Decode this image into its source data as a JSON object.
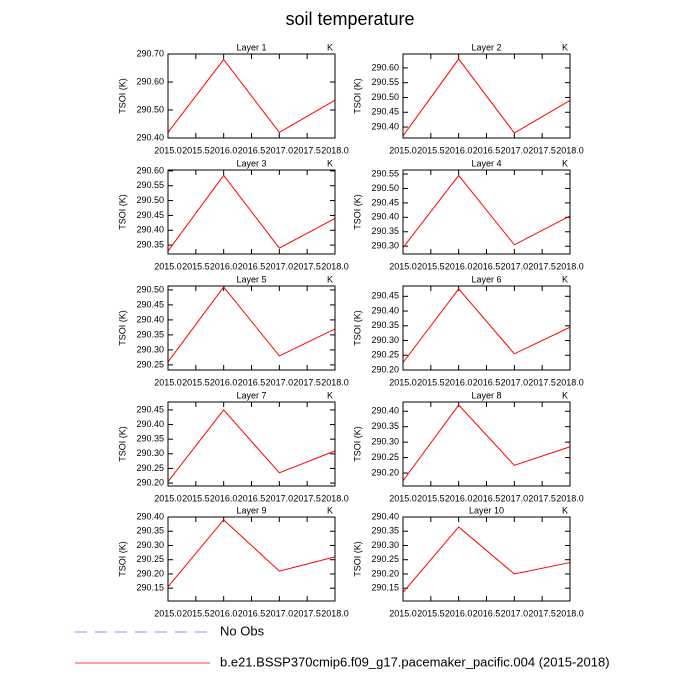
{
  "title": "soil temperature",
  "legend": [
    {
      "name": "No Obs",
      "color": "#8c8cf0",
      "dash": true
    },
    {
      "name": "b.e21.BSSP370cmip6.f09_g17.pacemaker_pacific.004 (2015-2018)",
      "color": "#ff4040",
      "dash": false
    }
  ],
  "chart_data": [
    {
      "type": "line",
      "title": "Layer 1",
      "unit": "K",
      "ylabel": "TSOI  (K)",
      "x": [
        2015,
        2016,
        2017,
        2018
      ],
      "values": [
        290.42,
        290.68,
        290.42,
        290.535
      ],
      "color": "#ff0000",
      "xlim": [
        2015,
        2018
      ],
      "ylim": [
        290.4,
        290.7
      ],
      "xticks": [
        {
          "value": 2015,
          "label": "2015.0"
        },
        {
          "value": 2015.5,
          "label": "2015.5"
        },
        {
          "value": 2016,
          "label": "2016.0"
        },
        {
          "value": 2016.5,
          "label": "2016.5"
        },
        {
          "value": 2017,
          "label": "2017.0"
        },
        {
          "value": 2017.5,
          "label": "2017.5"
        },
        {
          "value": 2018,
          "label": "2018.0"
        }
      ],
      "yticks": [
        {
          "value": 290.4,
          "label": "290.40"
        },
        {
          "value": 290.5,
          "label": "290.50"
        },
        {
          "value": 290.6,
          "label": "290.60"
        },
        {
          "value": 290.7,
          "label": "290.70"
        }
      ]
    },
    {
      "type": "line",
      "title": "Layer 2",
      "unit": "K",
      "ylabel": "TSOI  (K)",
      "x": [
        2015,
        2016,
        2017,
        2018
      ],
      "values": [
        290.37,
        290.63,
        290.38,
        290.49
      ],
      "color": "#ff0000",
      "xlim": [
        2015,
        2018
      ],
      "ylim": [
        290.363,
        290.647
      ],
      "xticks": [
        {
          "value": 2015,
          "label": "2015.0"
        },
        {
          "value": 2015.5,
          "label": "2015.5"
        },
        {
          "value": 2016,
          "label": "2016.0"
        },
        {
          "value": 2016.5,
          "label": "2016.5"
        },
        {
          "value": 2017,
          "label": "2017.0"
        },
        {
          "value": 2017.5,
          "label": "2017.5"
        },
        {
          "value": 2018,
          "label": "2018.0"
        }
      ],
      "yticks": [
        {
          "value": 290.4,
          "label": "290.40"
        },
        {
          "value": 290.45,
          "label": "290.45"
        },
        {
          "value": 290.5,
          "label": "290.50"
        },
        {
          "value": 290.55,
          "label": "290.55"
        },
        {
          "value": 290.6,
          "label": "290.60"
        }
      ]
    },
    {
      "type": "line",
      "title": "Layer 3",
      "unit": "K",
      "ylabel": "TSOI  (K)",
      "x": [
        2015,
        2016,
        2017,
        2018
      ],
      "values": [
        290.33,
        290.585,
        290.34,
        290.44
      ],
      "color": "#ff0000",
      "xlim": [
        2015,
        2018
      ],
      "ylim": [
        290.32,
        290.603
      ],
      "xticks": [
        {
          "value": 2015,
          "label": "2015.0"
        },
        {
          "value": 2015.5,
          "label": "2015.5"
        },
        {
          "value": 2016,
          "label": "2016.0"
        },
        {
          "value": 2016.5,
          "label": "2016.5"
        },
        {
          "value": 2017,
          "label": "2017.0"
        },
        {
          "value": 2017.5,
          "label": "2017.5"
        },
        {
          "value": 2018,
          "label": "2018.0"
        }
      ],
      "yticks": [
        {
          "value": 290.35,
          "label": "290.35"
        },
        {
          "value": 290.4,
          "label": "290.40"
        },
        {
          "value": 290.45,
          "label": "290.45"
        },
        {
          "value": 290.5,
          "label": "290.50"
        },
        {
          "value": 290.55,
          "label": "290.55"
        },
        {
          "value": 290.6,
          "label": "290.60"
        }
      ]
    },
    {
      "type": "line",
      "title": "Layer 4",
      "unit": "K",
      "ylabel": "TSOI  (K)",
      "x": [
        2015,
        2016,
        2017,
        2018
      ],
      "values": [
        290.295,
        290.545,
        290.305,
        290.405
      ],
      "color": "#ff0000",
      "xlim": [
        2015,
        2018
      ],
      "ylim": [
        290.273,
        290.564
      ],
      "xticks": [
        {
          "value": 2015,
          "label": "2015.0"
        },
        {
          "value": 2015.5,
          "label": "2015.5"
        },
        {
          "value": 2016,
          "label": "2016.0"
        },
        {
          "value": 2016.5,
          "label": "2016.5"
        },
        {
          "value": 2017,
          "label": "2017.0"
        },
        {
          "value": 2017.5,
          "label": "2017.5"
        },
        {
          "value": 2018,
          "label": "2018.0"
        }
      ],
      "yticks": [
        {
          "value": 290.3,
          "label": "290.30"
        },
        {
          "value": 290.35,
          "label": "290.35"
        },
        {
          "value": 290.4,
          "label": "290.40"
        },
        {
          "value": 290.45,
          "label": "290.45"
        },
        {
          "value": 290.5,
          "label": "290.50"
        },
        {
          "value": 290.55,
          "label": "290.55"
        }
      ]
    },
    {
      "type": "line",
      "title": "Layer 5",
      "unit": "K",
      "ylabel": "TSOI  (K)",
      "x": [
        2015,
        2016,
        2017,
        2018
      ],
      "values": [
        290.26,
        290.51,
        290.28,
        290.37
      ],
      "color": "#ff0000",
      "xlim": [
        2015,
        2018
      ],
      "ylim": [
        290.233,
        290.513
      ],
      "xticks": [
        {
          "value": 2015,
          "label": "2015.0"
        },
        {
          "value": 2015.5,
          "label": "2015.5"
        },
        {
          "value": 2016,
          "label": "2016.0"
        },
        {
          "value": 2016.5,
          "label": "2016.5"
        },
        {
          "value": 2017,
          "label": "2017.0"
        },
        {
          "value": 2017.5,
          "label": "2017.5"
        },
        {
          "value": 2018,
          "label": "2018.0"
        }
      ],
      "yticks": [
        {
          "value": 290.25,
          "label": "290.25"
        },
        {
          "value": 290.3,
          "label": "290.30"
        },
        {
          "value": 290.35,
          "label": "290.35"
        },
        {
          "value": 290.4,
          "label": "290.40"
        },
        {
          "value": 290.45,
          "label": "290.45"
        },
        {
          "value": 290.5,
          "label": "290.50"
        }
      ]
    },
    {
      "type": "line",
      "title": "Layer 6",
      "unit": "K",
      "ylabel": "TSOI  (K)",
      "x": [
        2015,
        2016,
        2017,
        2018
      ],
      "values": [
        290.225,
        290.475,
        290.255,
        290.345
      ],
      "color": "#ff0000",
      "xlim": [
        2015,
        2018
      ],
      "ylim": [
        290.2,
        290.485
      ],
      "xticks": [
        {
          "value": 2015,
          "label": "2015.0"
        },
        {
          "value": 2015.5,
          "label": "2015.5"
        },
        {
          "value": 2016,
          "label": "2016.0"
        },
        {
          "value": 2016.5,
          "label": "2016.5"
        },
        {
          "value": 2017,
          "label": "2017.0"
        },
        {
          "value": 2017.5,
          "label": "2017.5"
        },
        {
          "value": 2018,
          "label": "2018.0"
        }
      ],
      "yticks": [
        {
          "value": 290.2,
          "label": "290.20"
        },
        {
          "value": 290.25,
          "label": "290.25"
        },
        {
          "value": 290.3,
          "label": "290.30"
        },
        {
          "value": 290.35,
          "label": "290.35"
        },
        {
          "value": 290.4,
          "label": "290.40"
        },
        {
          "value": 290.45,
          "label": "290.45"
        }
      ]
    },
    {
      "type": "line",
      "title": "Layer 7",
      "unit": "K",
      "ylabel": "TSOI  (K)",
      "x": [
        2015,
        2016,
        2017,
        2018
      ],
      "values": [
        290.205,
        290.45,
        290.235,
        290.31
      ],
      "color": "#ff0000",
      "xlim": [
        2015,
        2018
      ],
      "ylim": [
        290.19,
        290.477
      ],
      "xticks": [
        {
          "value": 2015,
          "label": "2015.0"
        },
        {
          "value": 2015.5,
          "label": "2015.5"
        },
        {
          "value": 2016,
          "label": "2016.0"
        },
        {
          "value": 2016.5,
          "label": "2016.5"
        },
        {
          "value": 2017,
          "label": "2017.0"
        },
        {
          "value": 2017.5,
          "label": "2017.5"
        },
        {
          "value": 2018,
          "label": "2018.0"
        }
      ],
      "yticks": [
        {
          "value": 290.2,
          "label": "290.20"
        },
        {
          "value": 290.25,
          "label": "290.25"
        },
        {
          "value": 290.3,
          "label": "290.30"
        },
        {
          "value": 290.35,
          "label": "290.35"
        },
        {
          "value": 290.4,
          "label": "290.40"
        },
        {
          "value": 290.45,
          "label": "290.45"
        }
      ]
    },
    {
      "type": "line",
      "title": "Layer 8",
      "unit": "K",
      "ylabel": "TSOI  (K)",
      "x": [
        2015,
        2016,
        2017,
        2018
      ],
      "values": [
        290.175,
        290.42,
        290.225,
        290.285
      ],
      "color": "#ff0000",
      "xlim": [
        2015,
        2018
      ],
      "ylim": [
        290.158,
        290.43
      ],
      "xticks": [
        {
          "value": 2015,
          "label": "2015.0"
        },
        {
          "value": 2015.5,
          "label": "2015.5"
        },
        {
          "value": 2016,
          "label": "2016.0"
        },
        {
          "value": 2016.5,
          "label": "2016.5"
        },
        {
          "value": 2017,
          "label": "2017.0"
        },
        {
          "value": 2017.5,
          "label": "2017.5"
        },
        {
          "value": 2018,
          "label": "2018.0"
        }
      ],
      "yticks": [
        {
          "value": 290.2,
          "label": "290.20"
        },
        {
          "value": 290.25,
          "label": "290.25"
        },
        {
          "value": 290.3,
          "label": "290.30"
        },
        {
          "value": 290.35,
          "label": "290.35"
        },
        {
          "value": 290.4,
          "label": "290.40"
        }
      ]
    },
    {
      "type": "line",
      "title": "Layer 9",
      "unit": "K",
      "ylabel": "TSOI  (K)",
      "x": [
        2015,
        2016,
        2017,
        2018
      ],
      "values": [
        290.155,
        290.39,
        290.21,
        290.26
      ],
      "color": "#ff0000",
      "xlim": [
        2015,
        2018
      ],
      "ylim": [
        290.105,
        290.4
      ],
      "xticks": [
        {
          "value": 2015,
          "label": "2015.0"
        },
        {
          "value": 2015.5,
          "label": "2015.5"
        },
        {
          "value": 2016,
          "label": "2016.0"
        },
        {
          "value": 2016.5,
          "label": "2016.5"
        },
        {
          "value": 2017,
          "label": "2017.0"
        },
        {
          "value": 2017.5,
          "label": "2017.5"
        },
        {
          "value": 2018,
          "label": "2018.0"
        }
      ],
      "yticks": [
        {
          "value": 290.15,
          "label": "290.15"
        },
        {
          "value": 290.2,
          "label": "290.20"
        },
        {
          "value": 290.25,
          "label": "290.25"
        },
        {
          "value": 290.3,
          "label": "290.30"
        },
        {
          "value": 290.35,
          "label": "290.35"
        },
        {
          "value": 290.4,
          "label": "290.40"
        }
      ]
    },
    {
      "type": "line",
      "title": "Layer 10",
      "unit": "K",
      "ylabel": "TSOI  (K)",
      "x": [
        2015,
        2016,
        2017,
        2018
      ],
      "values": [
        290.135,
        290.365,
        290.2,
        290.24
      ],
      "color": "#ff0000",
      "xlim": [
        2015,
        2018
      ],
      "ylim": [
        290.105,
        290.4
      ],
      "xticks": [
        {
          "value": 2015,
          "label": "2015.0"
        },
        {
          "value": 2015.5,
          "label": "2015.5"
        },
        {
          "value": 2016,
          "label": "2016.0"
        },
        {
          "value": 2016.5,
          "label": "2016.5"
        },
        {
          "value": 2017,
          "label": "2017.0"
        },
        {
          "value": 2017.5,
          "label": "2017.5"
        },
        {
          "value": 2018,
          "label": "2018.0"
        }
      ],
      "yticks": [
        {
          "value": 290.15,
          "label": "290.15"
        },
        {
          "value": 290.2,
          "label": "290.20"
        },
        {
          "value": 290.25,
          "label": "290.25"
        },
        {
          "value": 290.3,
          "label": "290.30"
        },
        {
          "value": 290.35,
          "label": "290.35"
        },
        {
          "value": 290.4,
          "label": "290.40"
        }
      ]
    }
  ]
}
